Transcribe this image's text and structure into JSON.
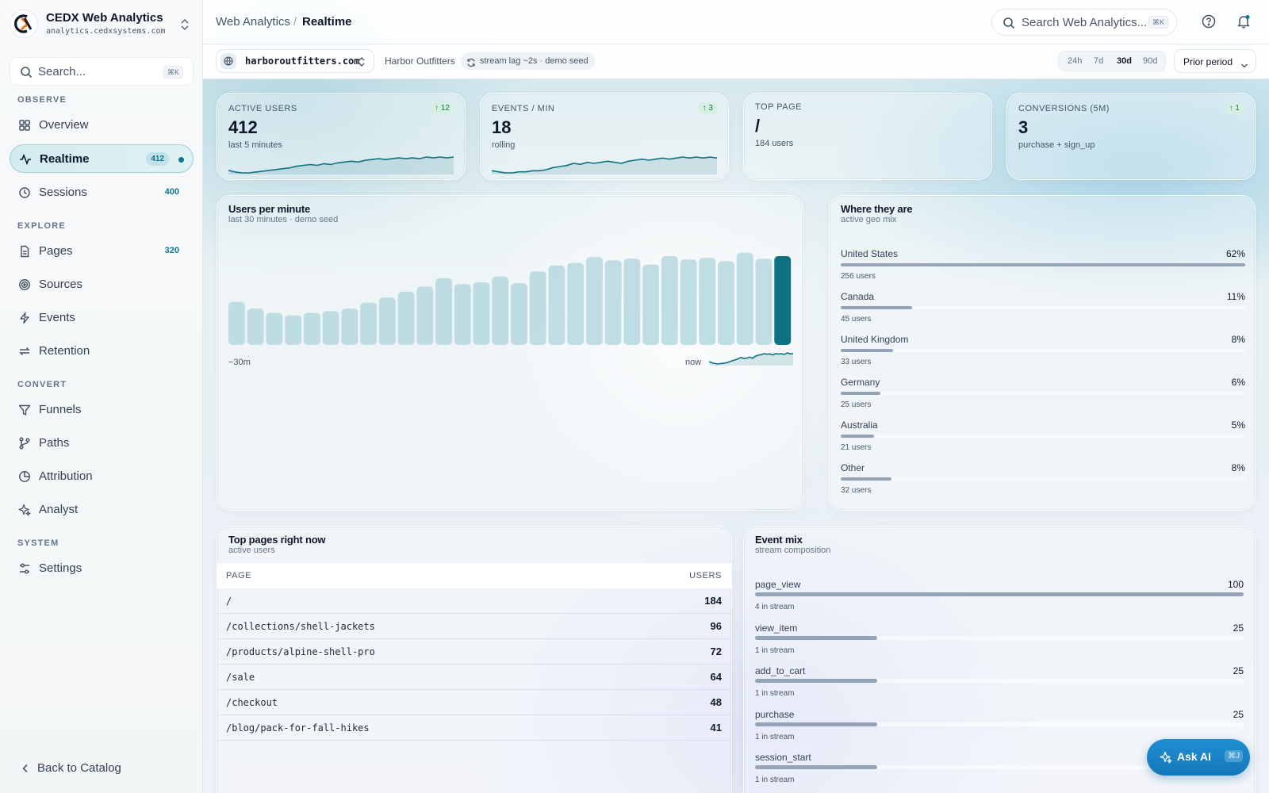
{
  "brand": {
    "title": "CEDX Web Analytics",
    "domain": "analytics.cedxsystems.com"
  },
  "sidebar": {
    "search_label": "Search...",
    "search_shortcut": "⌘K",
    "sections": {
      "observe": "OBSERVE",
      "explore": "EXPLORE",
      "convert": "CONVERT",
      "system": "SYSTEM"
    },
    "items": {
      "overview": {
        "label": "Overview",
        "icon": "grid-icon"
      },
      "realtime": {
        "label": "Realtime",
        "count": "412",
        "icon": "activity-icon",
        "active": true
      },
      "sessions": {
        "label": "Sessions",
        "count": "400",
        "icon": "clock-icon"
      },
      "pages": {
        "label": "Pages",
        "count": "320",
        "icon": "file-icon"
      },
      "sources": {
        "label": "Sources",
        "icon": "target-icon"
      },
      "events": {
        "label": "Events",
        "icon": "bolt-icon"
      },
      "retention": {
        "label": "Retention",
        "icon": "repeat-icon"
      },
      "funnels": {
        "label": "Funnels",
        "icon": "filter-icon"
      },
      "paths": {
        "label": "Paths",
        "icon": "branch-icon"
      },
      "attribution": {
        "label": "Attribution",
        "icon": "pie-icon"
      },
      "analyst": {
        "label": "Analyst",
        "icon": "sparkle-icon"
      },
      "settings": {
        "label": "Settings",
        "icon": "sliders-icon"
      }
    },
    "back_label": "Back to Catalog"
  },
  "header": {
    "breadcrumb_root": "Web Analytics",
    "breadcrumb_sep": "/",
    "breadcrumb_current": "Realtime",
    "search_label": "Search Web Analytics...",
    "search_shortcut": "⌘K"
  },
  "filters": {
    "site": "harboroutfitters.com",
    "site_name": "Harbor Outfitters",
    "stream_status": "stream lag ~2s · demo seed",
    "ranges": [
      "24h",
      "7d",
      "30d",
      "90d"
    ],
    "active_range": "30d",
    "compare": "Prior period"
  },
  "kpis": [
    {
      "label": "ACTIVE USERS",
      "value": "412",
      "sub": "last 5 minutes",
      "delta": "↑ 12",
      "spark": [
        6,
        4,
        3,
        3,
        4,
        5,
        6,
        7,
        8,
        9,
        11,
        12,
        13,
        12,
        14,
        13,
        15,
        16,
        17,
        16,
        18,
        19,
        20,
        19,
        20,
        21,
        20,
        21,
        20,
        22,
        21,
        22,
        21,
        22
      ]
    },
    {
      "label": "EVENTS / MIN",
      "value": "18",
      "sub": "rolling",
      "delta": "↑ 3",
      "spark": [
        5,
        4,
        3,
        3,
        4,
        4,
        5,
        5,
        6,
        8,
        9,
        10,
        12,
        11,
        13,
        12,
        13,
        14,
        13,
        12,
        14,
        15,
        16,
        15,
        16,
        17,
        16,
        17,
        18,
        17,
        18,
        17,
        18,
        17
      ]
    },
    {
      "label": "TOP PAGE",
      "value": "/",
      "sub": "184 users"
    },
    {
      "label": "CONVERSIONS (5M)",
      "value": "3",
      "sub": "purchase + sign_up",
      "delta": "↑ 1"
    }
  ],
  "users_chart": {
    "title": "Users per minute",
    "subtitle": "last 30 minutes · demo seed",
    "axis_start": "−30m",
    "axis_end": "now"
  },
  "chart_data": {
    "type": "bar",
    "categories": [
      "−30m",
      "−29m",
      "−28m",
      "−27m",
      "−26m",
      "−25m",
      "−24m",
      "−23m",
      "−22m",
      "−21m",
      "−20m",
      "−19m",
      "−18m",
      "−17m",
      "−16m",
      "−15m",
      "−14m",
      "−13m",
      "−12m",
      "−11m",
      "−10m",
      "−9m",
      "−8m",
      "−7m",
      "−6m",
      "−5m",
      "−4m",
      "−3m",
      "−2m",
      "now"
    ],
    "values": [
      51,
      43,
      38,
      35,
      38,
      40,
      43,
      50,
      56,
      63,
      69,
      79,
      72,
      74,
      81,
      73,
      87,
      94,
      97,
      104,
      100,
      102,
      95,
      105,
      101,
      103,
      99,
      109,
      102,
      105
    ],
    "highlight_last": true,
    "ylim": [
      0,
      120
    ],
    "bar_color": "#b5d8de",
    "highlight_color": "#0f7283"
  },
  "geo": {
    "title": "Where they are",
    "subtitle": "active geo mix",
    "rows": [
      {
        "country": "United States",
        "pct": "62%",
        "users": "256 users",
        "share": 1.0
      },
      {
        "country": "Canada",
        "pct": "11%",
        "users": "45 users",
        "share": 0.176
      },
      {
        "country": "United Kingdom",
        "pct": "8%",
        "users": "33 users",
        "share": 0.129
      },
      {
        "country": "Germany",
        "pct": "6%",
        "users": "25 users",
        "share": 0.098
      },
      {
        "country": "Australia",
        "pct": "5%",
        "users": "21 users",
        "share": 0.082
      },
      {
        "country": "Other",
        "pct": "8%",
        "users": "32 users",
        "share": 0.125
      }
    ]
  },
  "top_pages": {
    "title": "Top pages right now",
    "subtitle": "active users",
    "col_page": "PAGE",
    "col_users": "USERS",
    "rows": [
      {
        "path": "/",
        "users": "184"
      },
      {
        "path": "/collections/shell-jackets",
        "users": "96"
      },
      {
        "path": "/products/alpine-shell-pro",
        "users": "72"
      },
      {
        "path": "/sale",
        "users": "64"
      },
      {
        "path": "/checkout",
        "users": "48"
      },
      {
        "path": "/blog/pack-for-fall-hikes",
        "users": "41"
      }
    ]
  },
  "event_mix": {
    "title": "Event mix",
    "subtitle": "stream composition",
    "rows": [
      {
        "name": "page_view",
        "count": "100",
        "sub": "4 in stream",
        "share": 1.0
      },
      {
        "name": "view_item",
        "count": "25",
        "sub": "1 in stream",
        "share": 0.25
      },
      {
        "name": "add_to_cart",
        "count": "25",
        "sub": "1 in stream",
        "share": 0.25
      },
      {
        "name": "purchase",
        "count": "25",
        "sub": "1 in stream",
        "share": 0.25
      },
      {
        "name": "session_start",
        "count": "25",
        "sub": "1 in stream",
        "share": 0.25
      }
    ]
  },
  "ask_ai": {
    "label": "Ask AI",
    "shortcut": "⌘J"
  },
  "colors": {
    "accent": "#0f7283",
    "ask_ai": "#1a82c4",
    "delta_bg": "#d6efe2",
    "delta_text": "#15803d"
  }
}
